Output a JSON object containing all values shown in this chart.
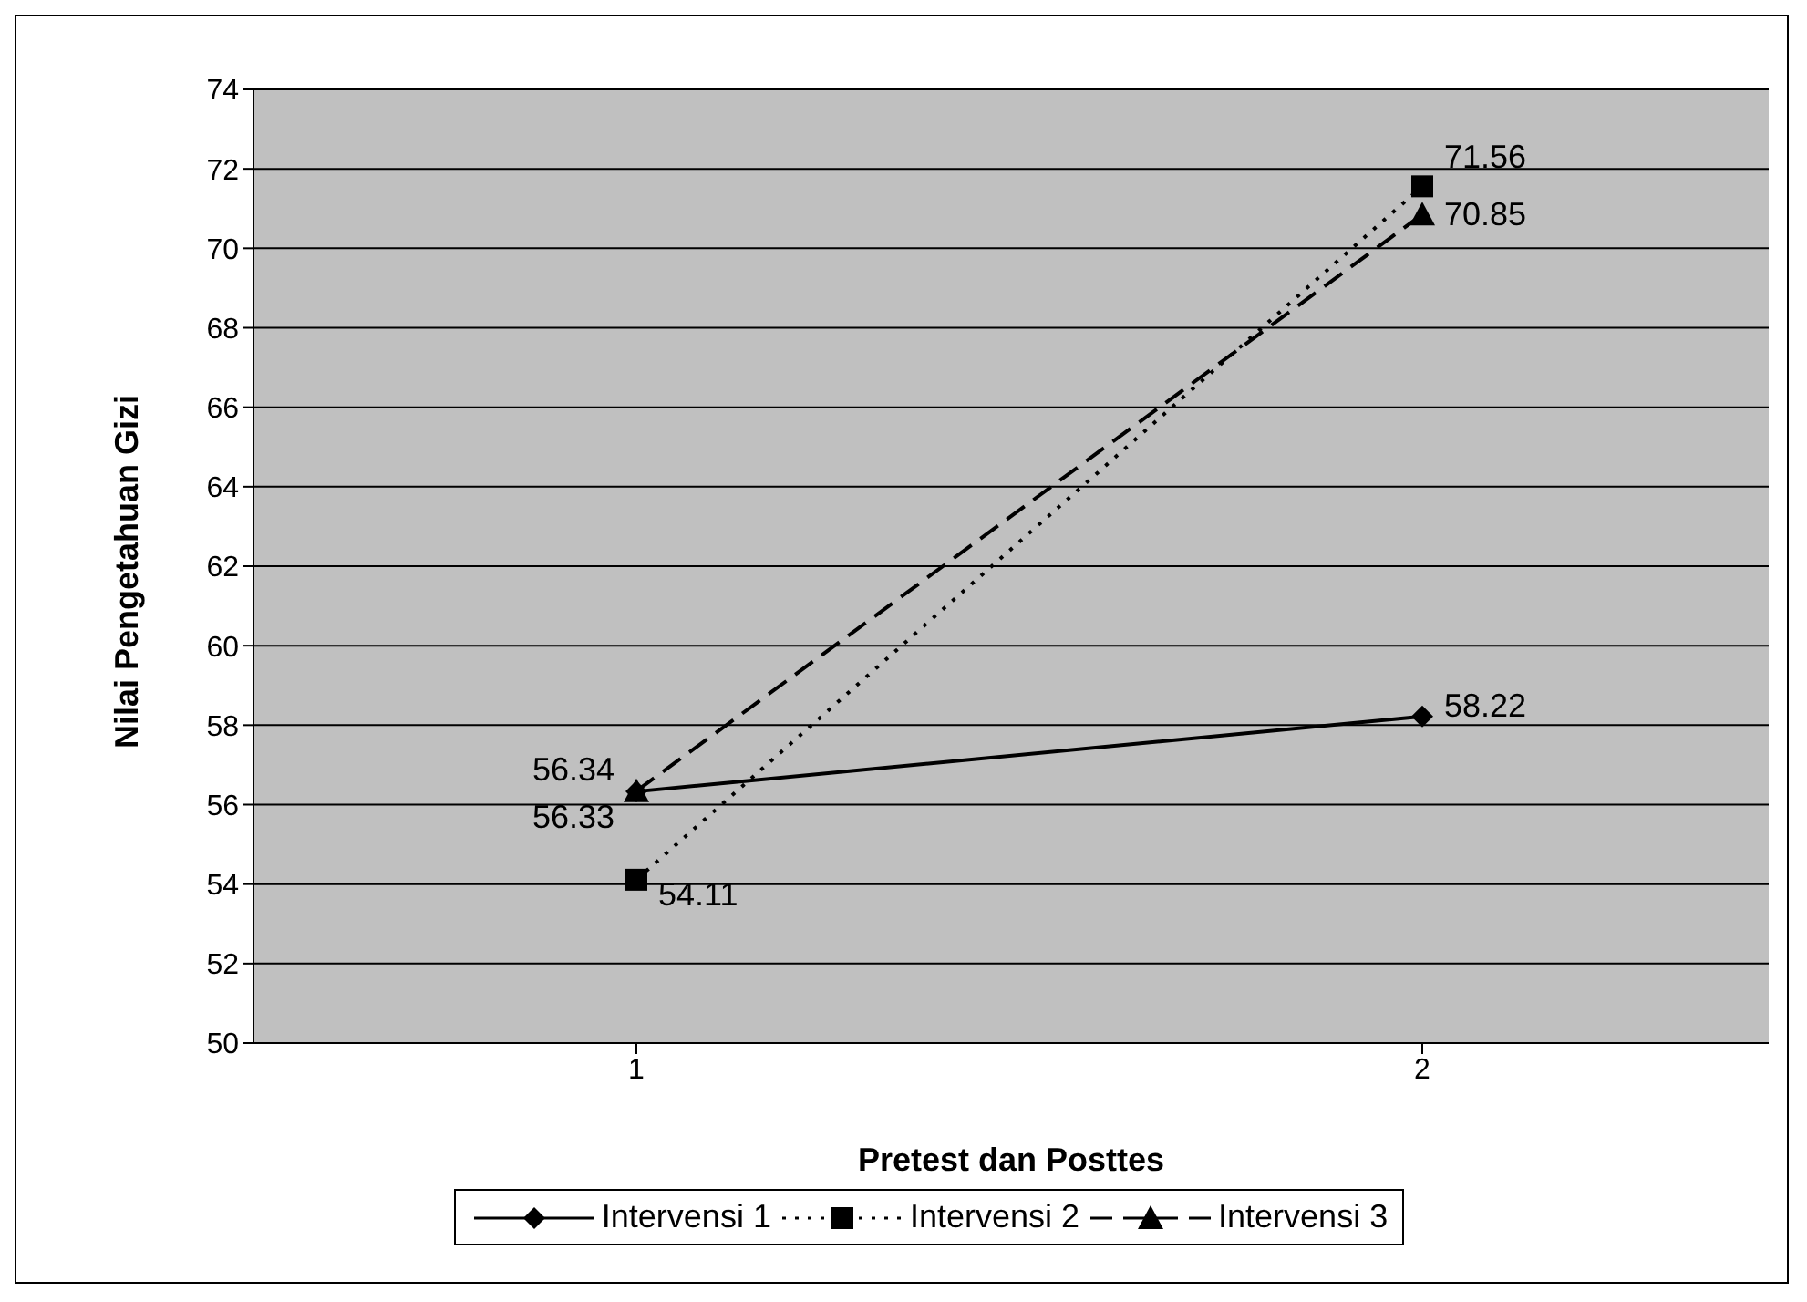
{
  "chart_data": {
    "type": "line",
    "xlabel": "Pretest dan Posttes",
    "ylabel": "Nilai Pengetahuan Gizi",
    "categories": [
      "1",
      "2"
    ],
    "series": [
      {
        "name": "Intervensi 1",
        "color": "#000000",
        "values": [
          56.33,
          58.22
        ],
        "marker": "diamond",
        "line_style": "solid"
      },
      {
        "name": "Intervensi 2",
        "color": "#000000",
        "values": [
          54.11,
          71.56
        ],
        "marker": "square",
        "line_style": "dotted"
      },
      {
        "name": "Intervensi 3",
        "color": "#000000",
        "values": [
          56.34,
          70.85
        ],
        "marker": "triangle",
        "line_style": "dashed"
      }
    ],
    "ylim": [
      50,
      74
    ],
    "yticks": [
      50,
      52,
      54,
      56,
      58,
      60,
      62,
      64,
      66,
      68,
      70,
      72,
      74
    ],
    "grid": "y",
    "legend": "bottom",
    "data_labels": true
  }
}
